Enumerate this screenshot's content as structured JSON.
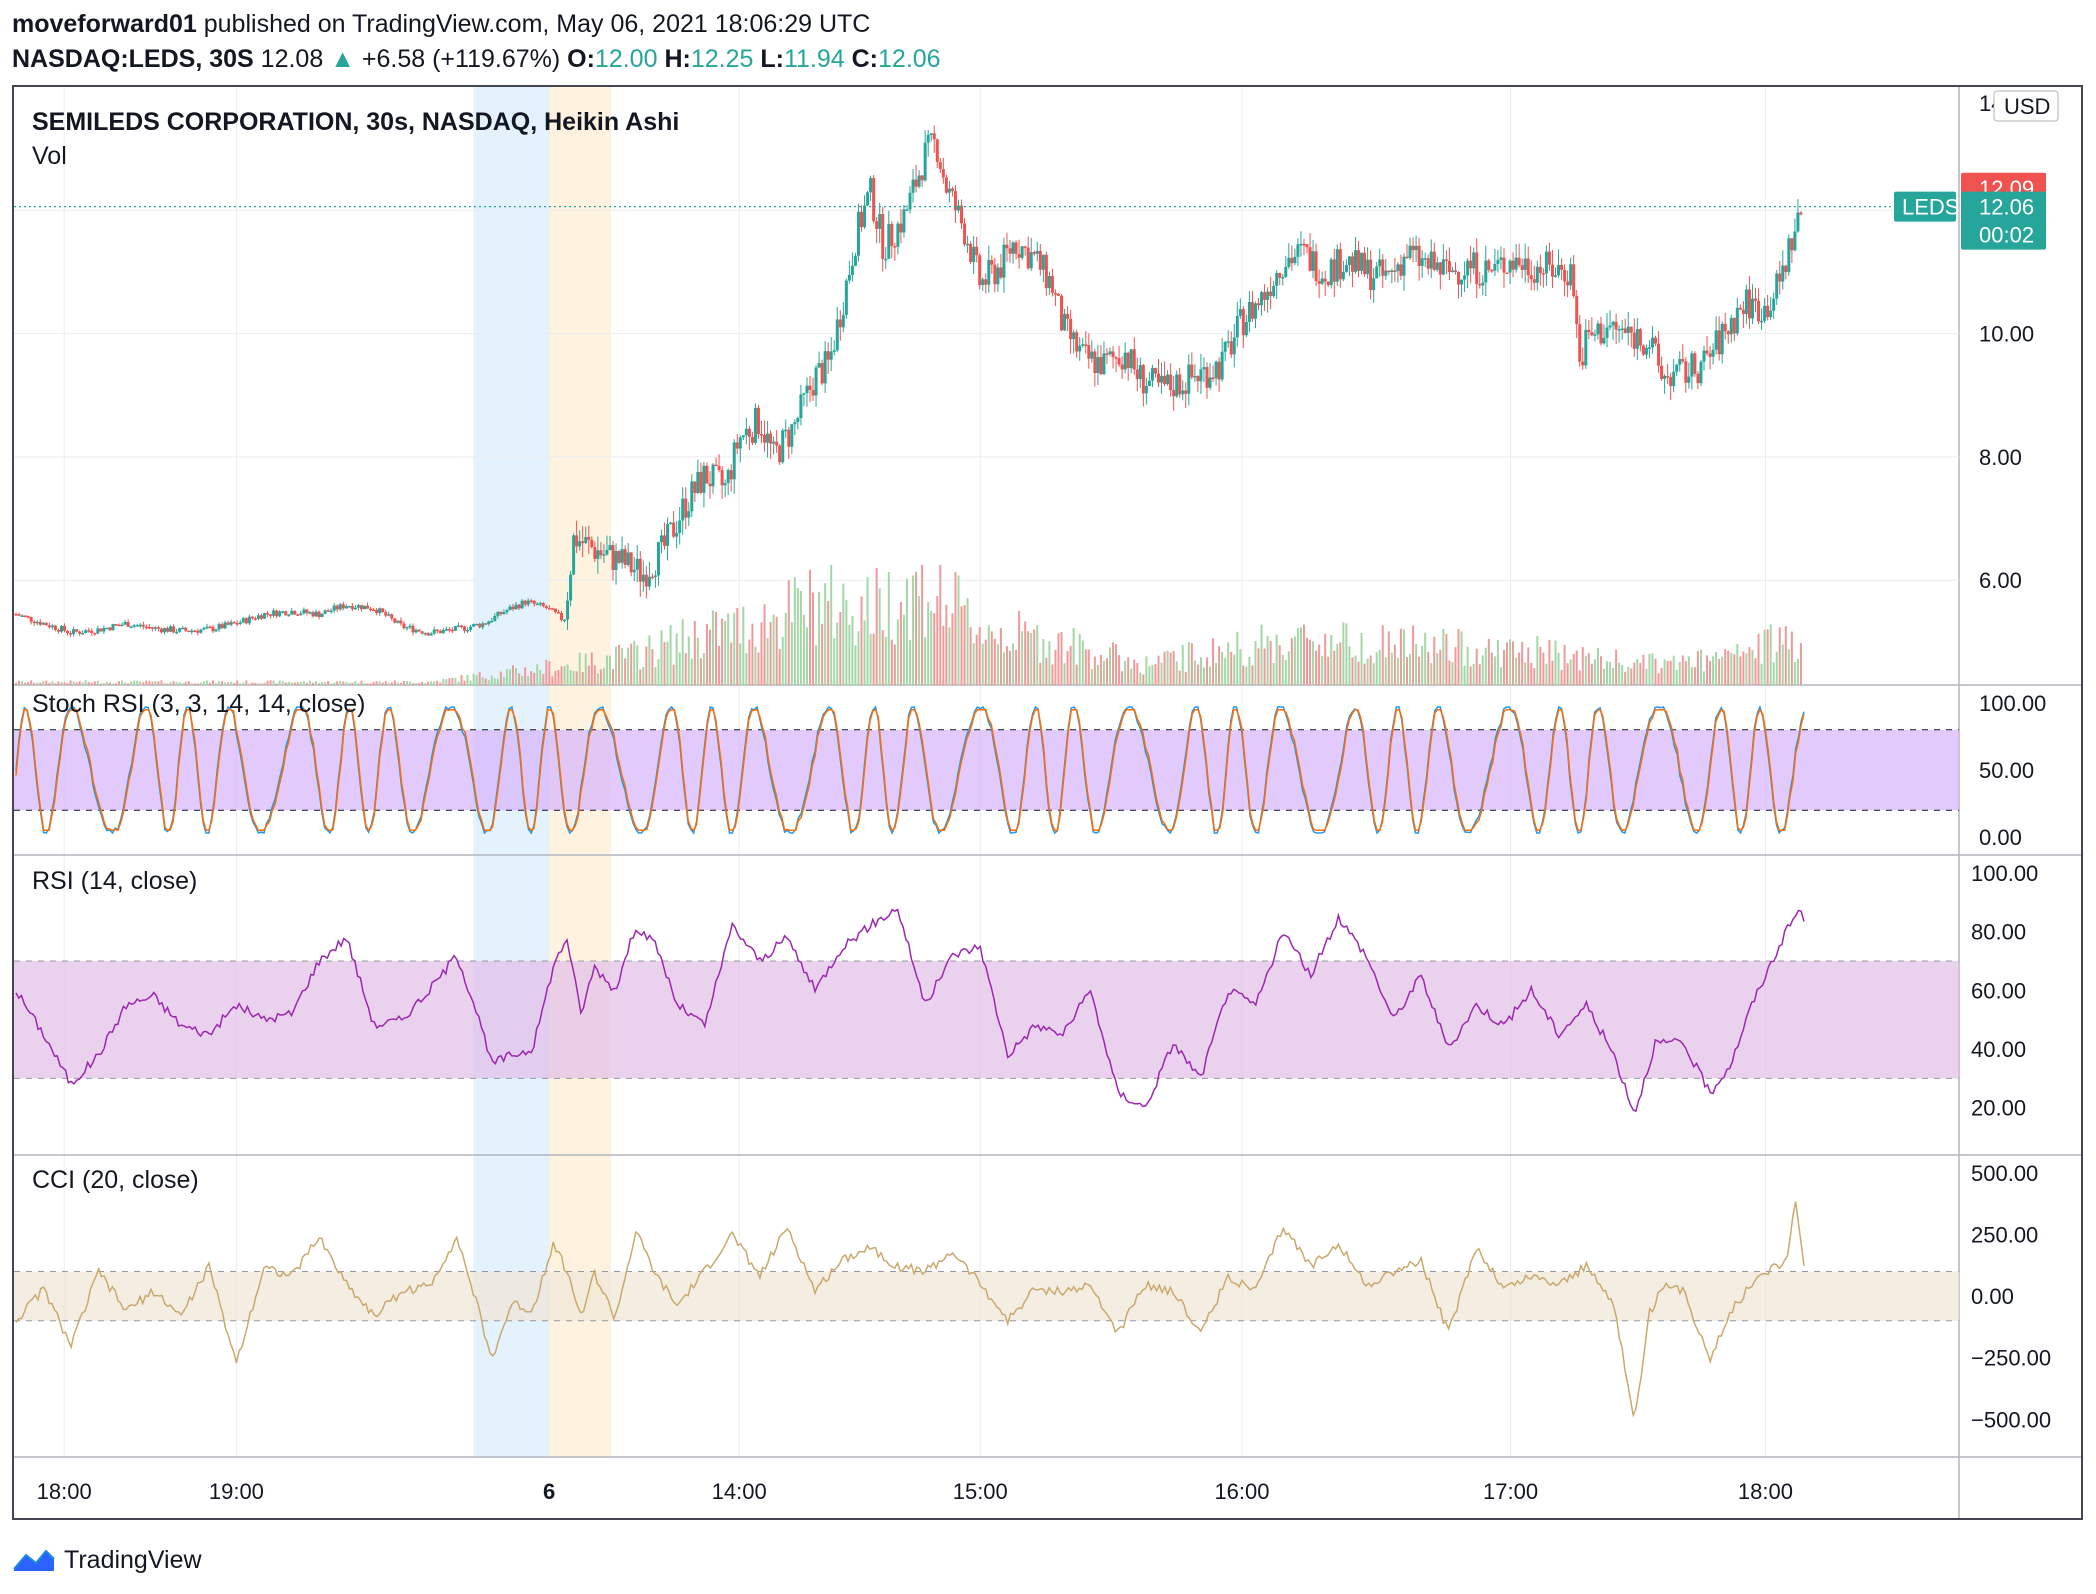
{
  "header": {
    "author": "moveforward01",
    "published_text": "published on TradingView.com, May 06, 2021 18:06:29 UTC",
    "symbol": "NASDAQ:LEDS, 30S",
    "last": "12.08",
    "up_arrow": "▲",
    "change": "+6.58 (+119.67%)",
    "o_label": "O:",
    "o_value": "12.00",
    "h_label": "H:",
    "h_value": "12.25",
    "l_label": "L:",
    "l_value": "11.94",
    "c_label": "C:",
    "c_value": "12.06"
  },
  "colors": {
    "up": "#26a69a",
    "down": "#ef5350",
    "vol_up": "#a5d6a7",
    "vol_down": "#ef9a9a",
    "stoch_k": "#2196f3",
    "stoch_d": "#ff6d00",
    "stoch_band": "#d6b4fc",
    "rsi": "#9c27b0",
    "rsi_band": "#e1bee7",
    "cci": "#c9a96e",
    "cci_band": "#efe6d6",
    "grid": "#e9ecf0",
    "session1": "#e3f2fd",
    "session2": "#fff3e0"
  },
  "footer": {
    "brand": "TradingView",
    "logo_icon": "tradingview-logo-icon"
  },
  "chart_data": {
    "type": "candlestick",
    "style": "Heikin Ashi",
    "title": "SEMILEDS CORPORATION, 30s, NASDAQ, Heikin Ashi",
    "volume_label": "Vol",
    "currency": "USD",
    "x_tick_labels": [
      "18:00",
      "19:00",
      "6",
      "14:00",
      "15:00",
      "16:00",
      "17:00",
      "18:00"
    ],
    "price_axis": {
      "ticks": [
        "14",
        "12.00",
        "10.00",
        "8.00",
        "6.00"
      ],
      "range": [
        4.3,
        14.0
      ]
    },
    "price_labels": {
      "high_marker": "12.09",
      "symbol": "LEDS",
      "last": "12.06",
      "countdown": "00:02"
    },
    "price_path": [
      [
        0,
        5.45
      ],
      [
        20,
        5.3
      ],
      [
        40,
        5.15
      ],
      [
        60,
        5.2
      ],
      [
        80,
        5.3
      ],
      [
        100,
        5.22
      ],
      [
        120,
        5.18
      ],
      [
        140,
        5.2
      ],
      [
        160,
        5.3
      ],
      [
        180,
        5.45
      ],
      [
        200,
        5.5
      ],
      [
        220,
        5.45
      ],
      [
        240,
        5.6
      ],
      [
        260,
        5.55
      ],
      [
        280,
        5.25
      ],
      [
        300,
        5.15
      ],
      [
        320,
        5.2
      ],
      [
        340,
        5.3
      ],
      [
        355,
        5.5
      ],
      [
        370,
        5.65
      ],
      [
        385,
        5.55
      ],
      [
        398,
        5.35
      ],
      [
        405,
        6.7
      ],
      [
        420,
        6.5
      ],
      [
        440,
        6.3
      ],
      [
        455,
        6.1
      ],
      [
        470,
        6.5
      ],
      [
        485,
        7.2
      ],
      [
        500,
        7.7
      ],
      [
        515,
        7.5
      ],
      [
        525,
        8.3
      ],
      [
        540,
        8.6
      ],
      [
        550,
        8.0
      ],
      [
        565,
        8.5
      ],
      [
        580,
        9.3
      ],
      [
        590,
        9.5
      ],
      [
        600,
        10.5
      ],
      [
        610,
        11.6
      ],
      [
        620,
        12.3
      ],
      [
        630,
        11.4
      ],
      [
        645,
        11.9
      ],
      [
        660,
        12.9
      ],
      [
        668,
        13.1
      ],
      [
        675,
        12.4
      ],
      [
        690,
        11.6
      ],
      [
        700,
        10.8
      ],
      [
        715,
        11.1
      ],
      [
        725,
        11.5
      ],
      [
        740,
        11.2
      ],
      [
        752,
        10.8
      ],
      [
        760,
        10.1
      ],
      [
        775,
        9.6
      ],
      [
        790,
        9.5
      ],
      [
        805,
        9.7
      ],
      [
        815,
        9.3
      ],
      [
        830,
        9.1
      ],
      [
        845,
        9.2
      ],
      [
        860,
        9.35
      ],
      [
        875,
        9.5
      ],
      [
        890,
        10.2
      ],
      [
        905,
        10.6
      ],
      [
        920,
        11.2
      ],
      [
        935,
        11.3
      ],
      [
        950,
        11.0
      ],
      [
        965,
        11.2
      ],
      [
        980,
        11.0
      ],
      [
        995,
        10.9
      ],
      [
        1010,
        11.3
      ],
      [
        1025,
        11.1
      ],
      [
        1040,
        11.0
      ],
      [
        1055,
        11.1
      ],
      [
        1070,
        11.0
      ],
      [
        1085,
        11.2
      ],
      [
        1100,
        11.1
      ],
      [
        1115,
        11.05
      ],
      [
        1130,
        11.0
      ],
      [
        1135,
        9.5
      ],
      [
        1140,
        9.9
      ],
      [
        1155,
        10.1
      ],
      [
        1170,
        10.0
      ],
      [
        1185,
        9.9
      ],
      [
        1195,
        9.3
      ],
      [
        1210,
        9.35
      ],
      [
        1225,
        9.5
      ],
      [
        1240,
        10.0
      ],
      [
        1255,
        10.5
      ],
      [
        1270,
        10.4
      ],
      [
        1280,
        10.8
      ],
      [
        1290,
        11.6
      ],
      [
        1298,
        12.06
      ]
    ],
    "volume_path": [
      [
        0,
        0.03
      ],
      [
        300,
        0.03
      ],
      [
        405,
        0.2
      ],
      [
        450,
        0.3
      ],
      [
        500,
        0.5
      ],
      [
        540,
        0.6
      ],
      [
        580,
        0.8
      ],
      [
        620,
        0.75
      ],
      [
        660,
        0.95
      ],
      [
        700,
        0.55
      ],
      [
        760,
        0.4
      ],
      [
        820,
        0.2
      ],
      [
        880,
        0.35
      ],
      [
        940,
        0.45
      ],
      [
        1000,
        0.4
      ],
      [
        1060,
        0.35
      ],
      [
        1120,
        0.3
      ],
      [
        1180,
        0.2
      ],
      [
        1240,
        0.25
      ],
      [
        1298,
        0.5
      ]
    ],
    "indicators": [
      {
        "name": "Stoch RSI",
        "label": "Stoch RSI (3, 3, 14, 14, close)",
        "ticks": [
          "100.00",
          "50.00",
          "0.00"
        ],
        "range": [
          0,
          100
        ],
        "band": [
          20,
          80
        ],
        "series": [
          {
            "name": "K",
            "cycles": 34,
            "min": 3,
            "max": 97
          },
          {
            "name": "D",
            "cycles": 34,
            "min": 5,
            "max": 95,
            "lag": 4
          }
        ]
      },
      {
        "name": "RSI",
        "label": "RSI (14, close)",
        "ticks": [
          "100.00",
          "80.00",
          "60.00",
          "40.00",
          "20.00"
        ],
        "range": [
          10,
          100
        ],
        "band": [
          30,
          70
        ],
        "path": [
          [
            0,
            60
          ],
          [
            20,
            45
          ],
          [
            40,
            28
          ],
          [
            60,
            38
          ],
          [
            80,
            55
          ],
          [
            100,
            58
          ],
          [
            120,
            48
          ],
          [
            140,
            45
          ],
          [
            160,
            55
          ],
          [
            180,
            50
          ],
          [
            200,
            52
          ],
          [
            220,
            70
          ],
          [
            240,
            78
          ],
          [
            260,
            48
          ],
          [
            280,
            50
          ],
          [
            300,
            60
          ],
          [
            320,
            72
          ],
          [
            335,
            52
          ],
          [
            345,
            35
          ],
          [
            360,
            38
          ],
          [
            375,
            40
          ],
          [
            390,
            68
          ],
          [
            400,
            78
          ],
          [
            410,
            52
          ],
          [
            420,
            68
          ],
          [
            435,
            60
          ],
          [
            450,
            82
          ],
          [
            465,
            75
          ],
          [
            480,
            55
          ],
          [
            500,
            48
          ],
          [
            520,
            82
          ],
          [
            540,
            70
          ],
          [
            560,
            78
          ],
          [
            580,
            60
          ],
          [
            600,
            75
          ],
          [
            620,
            82
          ],
          [
            640,
            88
          ],
          [
            660,
            55
          ],
          [
            680,
            72
          ],
          [
            700,
            75
          ],
          [
            720,
            38
          ],
          [
            740,
            48
          ],
          [
            760,
            45
          ],
          [
            780,
            60
          ],
          [
            800,
            25
          ],
          [
            820,
            20
          ],
          [
            840,
            42
          ],
          [
            860,
            30
          ],
          [
            880,
            60
          ],
          [
            900,
            55
          ],
          [
            920,
            80
          ],
          [
            940,
            65
          ],
          [
            960,
            85
          ],
          [
            980,
            72
          ],
          [
            1000,
            50
          ],
          [
            1020,
            65
          ],
          [
            1040,
            40
          ],
          [
            1060,
            55
          ],
          [
            1080,
            48
          ],
          [
            1100,
            60
          ],
          [
            1120,
            45
          ],
          [
            1140,
            55
          ],
          [
            1160,
            38
          ],
          [
            1175,
            18
          ],
          [
            1190,
            42
          ],
          [
            1210,
            42
          ],
          [
            1230,
            25
          ],
          [
            1245,
            35
          ],
          [
            1260,
            55
          ],
          [
            1270,
            65
          ],
          [
            1285,
            80
          ],
          [
            1295,
            88
          ],
          [
            1298,
            84
          ]
        ]
      },
      {
        "name": "CCI",
        "label": "CCI (20, close)",
        "ticks": [
          "500.00",
          "250.00",
          "0.00",
          "−250.00",
          "−500.00"
        ],
        "range": [
          -580,
          500
        ],
        "band": [
          -100,
          100
        ],
        "path": [
          [
            0,
            -100
          ],
          [
            20,
            30
          ],
          [
            40,
            -200
          ],
          [
            60,
            100
          ],
          [
            80,
            -60
          ],
          [
            100,
            20
          ],
          [
            120,
            -80
          ],
          [
            140,
            120
          ],
          [
            160,
            -270
          ],
          [
            180,
            120
          ],
          [
            200,
            80
          ],
          [
            220,
            240
          ],
          [
            240,
            50
          ],
          [
            260,
            -80
          ],
          [
            280,
            20
          ],
          [
            300,
            40
          ],
          [
            320,
            240
          ],
          [
            335,
            -40
          ],
          [
            345,
            -260
          ],
          [
            360,
            -30
          ],
          [
            375,
            -60
          ],
          [
            390,
            220
          ],
          [
            400,
            100
          ],
          [
            410,
            -80
          ],
          [
            420,
            90
          ],
          [
            435,
            -90
          ],
          [
            450,
            260
          ],
          [
            465,
            80
          ],
          [
            480,
            -40
          ],
          [
            500,
            100
          ],
          [
            520,
            250
          ],
          [
            540,
            80
          ],
          [
            560,
            280
          ],
          [
            580,
            20
          ],
          [
            600,
            150
          ],
          [
            620,
            200
          ],
          [
            640,
            120
          ],
          [
            660,
            100
          ],
          [
            680,
            180
          ],
          [
            700,
            50
          ],
          [
            720,
            -100
          ],
          [
            740,
            30
          ],
          [
            760,
            20
          ],
          [
            780,
            40
          ],
          [
            800,
            -150
          ],
          [
            820,
            50
          ],
          [
            840,
            20
          ],
          [
            860,
            -150
          ],
          [
            880,
            80
          ],
          [
            900,
            20
          ],
          [
            920,
            280
          ],
          [
            940,
            120
          ],
          [
            960,
            220
          ],
          [
            980,
            40
          ],
          [
            1000,
            100
          ],
          [
            1020,
            140
          ],
          [
            1040,
            -150
          ],
          [
            1060,
            200
          ],
          [
            1080,
            30
          ],
          [
            1100,
            80
          ],
          [
            1120,
            50
          ],
          [
            1140,
            120
          ],
          [
            1160,
            -30
          ],
          [
            1175,
            -520
          ],
          [
            1185,
            -80
          ],
          [
            1195,
            40
          ],
          [
            1210,
            20
          ],
          [
            1230,
            -250
          ],
          [
            1245,
            -60
          ],
          [
            1260,
            50
          ],
          [
            1275,
            120
          ],
          [
            1285,
            140
          ],
          [
            1292,
            380
          ],
          [
            1298,
            120
          ]
        ]
      }
    ]
  }
}
